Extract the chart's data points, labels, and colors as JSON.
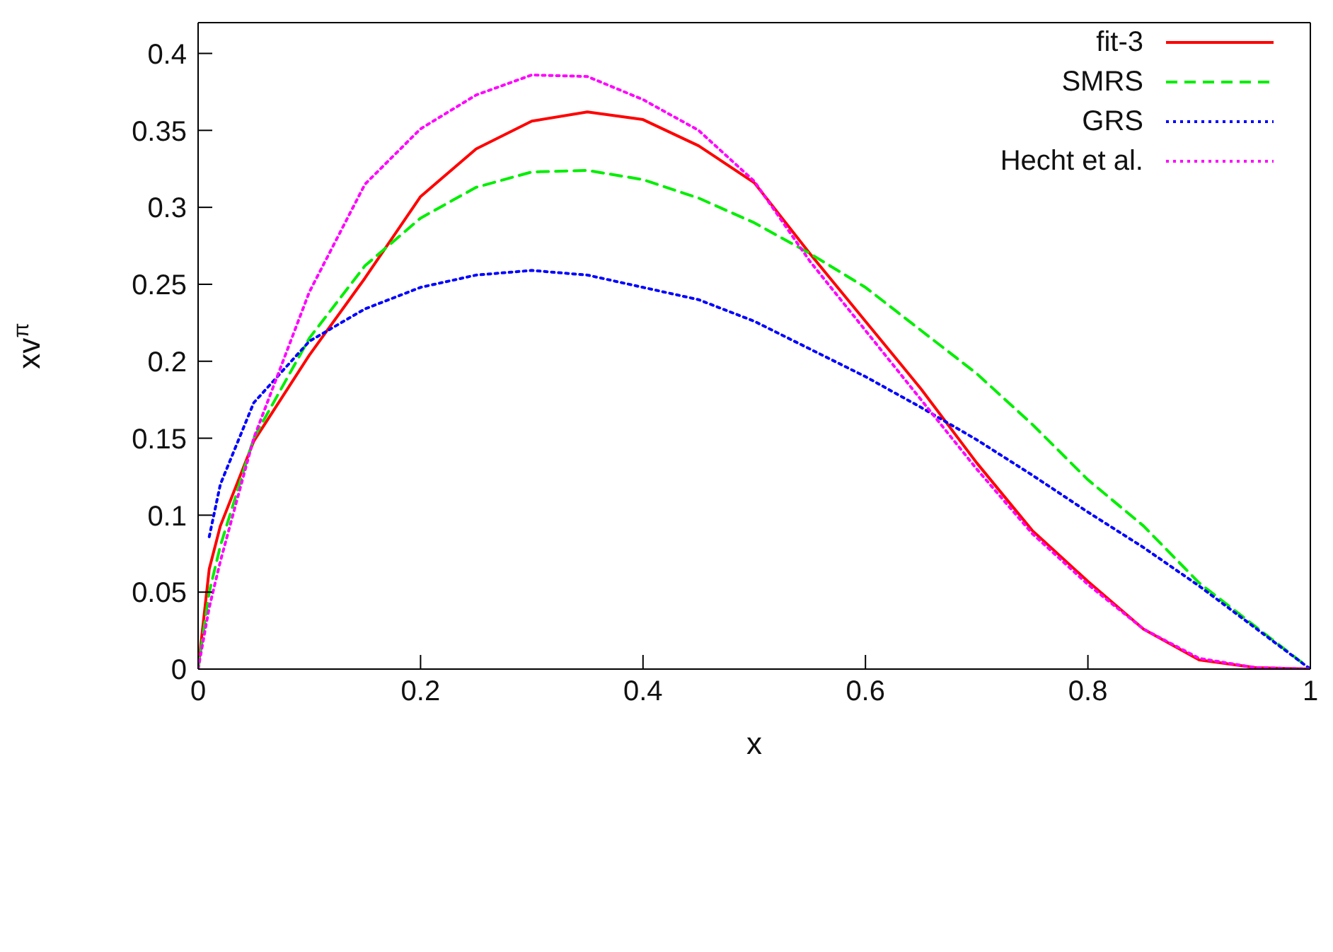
{
  "chart_data": {
    "type": "line",
    "xlabel": "x",
    "ylabel": "xv$^{π}$",
    "x": [
      0,
      0.01,
      0.02,
      0.05,
      0.1,
      0.15,
      0.2,
      0.25,
      0.3,
      0.35,
      0.4,
      0.45,
      0.5,
      0.55,
      0.6,
      0.65,
      0.7,
      0.75,
      0.8,
      0.85,
      0.9,
      0.95,
      1
    ],
    "series": [
      {
        "name": "fit-3",
        "color": "#ff0000",
        "line_style": "solid",
        "values": [
          0,
          0.065,
          0.093,
          0.148,
          0.204,
          0.254,
          0.307,
          0.338,
          0.356,
          0.362,
          0.357,
          0.34,
          0.316,
          0.27,
          0.226,
          0.182,
          0.134,
          0.09,
          0.057,
          0.026,
          0.006,
          0.001,
          0
        ]
      },
      {
        "name": "SMRS",
        "color": "#00ee00",
        "line_style": "dashed",
        "values": [
          0,
          0.05,
          0.08,
          0.15,
          0.215,
          0.262,
          0.293,
          0.313,
          0.323,
          0.324,
          0.318,
          0.306,
          0.29,
          0.27,
          0.248,
          0.22,
          0.192,
          0.159,
          0.123,
          0.093,
          0.056,
          0.028,
          0
        ]
      },
      {
        "name": "GRS",
        "color": "#0000ff",
        "line_style": "dotted",
        "values": [
          null,
          0.086,
          0.12,
          0.173,
          0.213,
          0.234,
          0.248,
          0.256,
          0.259,
          0.256,
          0.248,
          0.24,
          0.226,
          0.208,
          0.19,
          0.17,
          0.149,
          0.126,
          0.102,
          0.079,
          0.054,
          0.027,
          0
        ]
      },
      {
        "name": "Hecht et al.",
        "color": "#ff00ff",
        "line_style": "dotted",
        "values": [
          0,
          0.04,
          0.07,
          0.15,
          0.245,
          0.315,
          0.351,
          0.373,
          0.386,
          0.385,
          0.37,
          0.35,
          0.317,
          0.265,
          0.22,
          0.175,
          0.13,
          0.088,
          0.055,
          0.026,
          0.007,
          0.001,
          0
        ]
      }
    ],
    "xlim": [
      0,
      1
    ],
    "xticks": [
      0,
      0.2,
      0.4,
      0.6,
      0.8,
      1
    ],
    "ylim": [
      0,
      0.42
    ],
    "yticks": [
      0,
      0.05,
      0.1,
      0.15,
      0.2,
      0.25,
      0.3,
      0.35,
      0.4
    ],
    "grid": false,
    "legend": "top right",
    "marker": "none"
  }
}
